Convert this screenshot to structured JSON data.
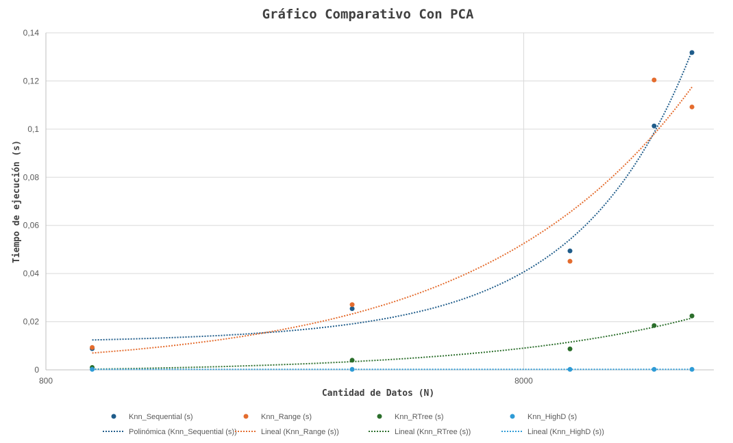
{
  "chart_data": {
    "type": "scatter",
    "title": "Gráfico Comparativo Con PCA",
    "xlabel": "Cantidad de Datos (N)",
    "ylabel": "Tiempo de ejecución (s)",
    "x_scale": "log",
    "xlim": [
      800,
      20000
    ],
    "ylim": [
      0,
      0.14
    ],
    "x_ticks": [
      "800",
      "8000"
    ],
    "y_ticks": [
      "0",
      "0,02",
      "0,04",
      "0,06",
      "0,08",
      "0,1",
      "0,12",
      "0,14"
    ],
    "grid": true,
    "legend_position": "bottom",
    "x": [
      1000,
      3500,
      10000,
      15000,
      18000
    ],
    "series": [
      {
        "name": "Knn_Sequential (s)",
        "color": "#1f5c8a",
        "values": [
          0.0088,
          0.0254,
          0.0494,
          0.1013,
          0.1318
        ],
        "trendline": {
          "name": "Polinómica (Knn_Sequential (s))",
          "type": "polynomial"
        }
      },
      {
        "name": "Knn_Range (s)",
        "color": "#e46c2e",
        "values": [
          0.0093,
          0.0271,
          0.0451,
          0.1204,
          0.1092
        ],
        "trendline": {
          "name": "Lineal (Knn_Range (s))",
          "type": "linear"
        }
      },
      {
        "name": "Knn_RTree (s)",
        "color": "#2b6e2b",
        "values": [
          0.001,
          0.004,
          0.0087,
          0.0184,
          0.0224
        ],
        "trendline": {
          "name": "Lineal (Knn_RTree (s))",
          "type": "linear"
        }
      },
      {
        "name": "Knn_HighD (s)",
        "color": "#2e9bd6",
        "values": [
          0.0002,
          0.0002,
          0.0002,
          0.0002,
          0.0002
        ],
        "trendline": {
          "name": "Lineal (Knn_HighD (s))",
          "type": "linear"
        }
      }
    ]
  }
}
